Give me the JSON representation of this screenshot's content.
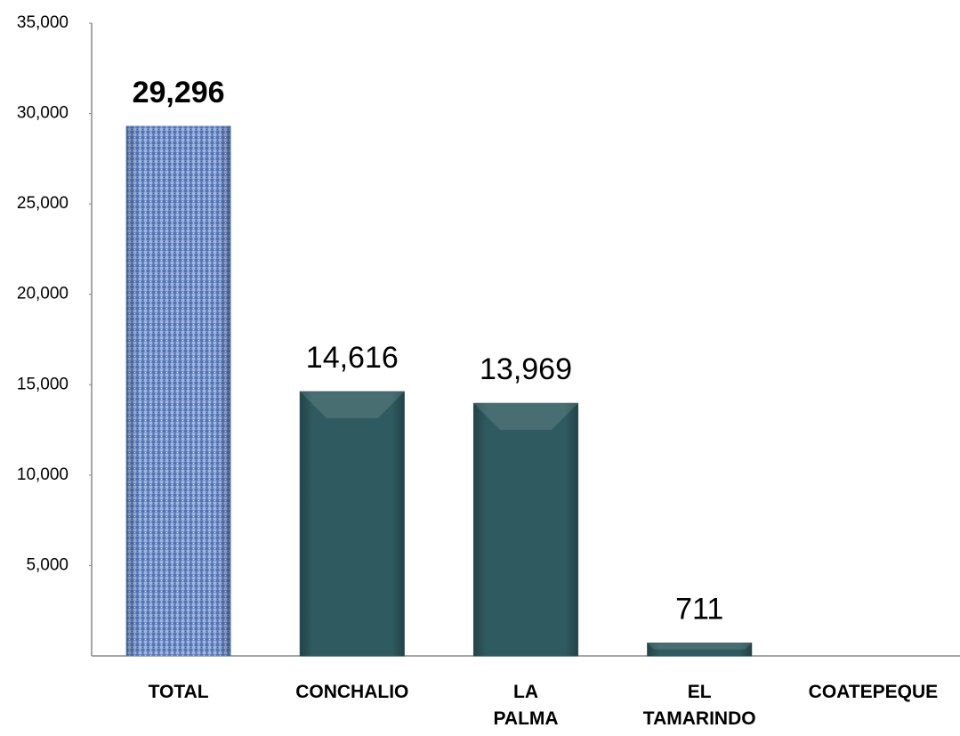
{
  "chart_data": {
    "type": "bar",
    "categories": [
      "TOTAL",
      "CONCHALIO",
      "LA PALMA",
      "EL TAMARINDO",
      "COATEPEQUE"
    ],
    "values": [
      29296,
      14616,
      13969,
      711,
      0
    ],
    "value_labels": [
      "29,296",
      "14,616",
      "13,969",
      "711",
      null
    ],
    "colors": [
      "#7390c8",
      "#2f5a5f",
      "#2f5a5f",
      "#2f5a5f",
      "#2f5a5f"
    ],
    "ylim": [
      0,
      35000
    ],
    "yticks": [
      {
        "value": 5000,
        "label": "5,000"
      },
      {
        "value": 10000,
        "label": "10,000"
      },
      {
        "value": 15000,
        "label": "15,000"
      },
      {
        "value": 20000,
        "label": "20,000"
      },
      {
        "value": 25000,
        "label": "25,000"
      },
      {
        "value": 30000,
        "label": "30,000"
      },
      {
        "value": 35000,
        "label": "35,000"
      }
    ],
    "grid": false
  }
}
